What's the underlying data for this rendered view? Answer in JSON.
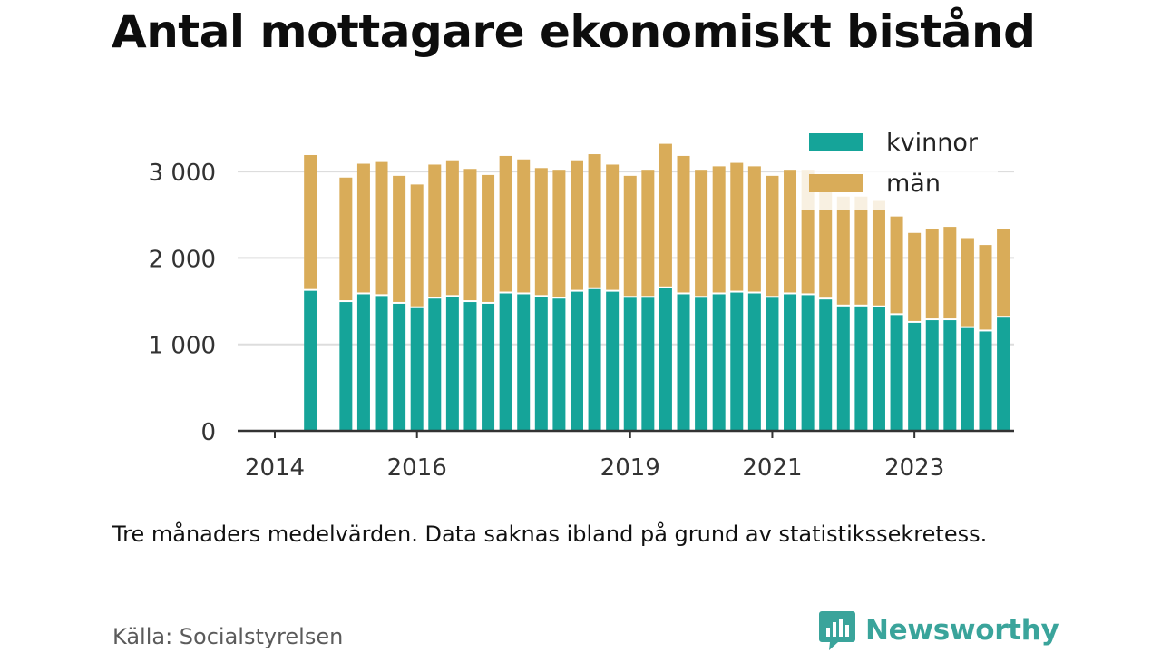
{
  "title": "Antal mottagare ekonomiskt bistånd",
  "caption": "Tre månaders medelvärden. Data saknas ibland på grund av statistikssekretess.",
  "source": "Källa: Socialstyrelsen",
  "brand": {
    "name": "Newsworthy",
    "icon": "bar-chart-speech-bubble-icon",
    "color": "#3aa49b"
  },
  "colors": {
    "kvinnor": "#15a499",
    "man": "#d9ac59",
    "grid": "#dddddd",
    "axis": "#333333"
  },
  "chart_data": {
    "type": "bar",
    "stacked": true,
    "title": "Antal mottagare ekonomiskt bistånd",
    "ylim": [
      0,
      3400
    ],
    "yticks": [
      {
        "value": 0,
        "label": "0"
      },
      {
        "value": 1000,
        "label": "1 000"
      },
      {
        "value": 2000,
        "label": "2 000"
      },
      {
        "value": 3000,
        "label": "3 000"
      }
    ],
    "xticks": [
      {
        "value": "2014-01",
        "label": "2014"
      },
      {
        "value": "2016-01",
        "label": "2016"
      },
      {
        "value": "2019-01",
        "label": "2019"
      },
      {
        "value": "2021-01",
        "label": "2021"
      },
      {
        "value": "2023-01",
        "label": "2023"
      }
    ],
    "grid": true,
    "legend": "top-right",
    "periods": [
      "2014-07",
      "2015-01",
      "2015-04",
      "2015-07",
      "2015-10",
      "2016-01",
      "2016-04",
      "2016-07",
      "2016-10",
      "2017-01",
      "2017-04",
      "2017-07",
      "2017-10",
      "2018-01",
      "2018-04",
      "2018-07",
      "2018-10",
      "2019-01",
      "2019-04",
      "2019-07",
      "2019-10",
      "2020-01",
      "2020-04",
      "2020-07",
      "2020-10",
      "2021-01",
      "2021-04",
      "2021-07",
      "2021-10",
      "2022-01",
      "2022-04",
      "2022-07",
      "2022-10",
      "2023-01",
      "2023-04",
      "2023-07",
      "2023-10",
      "2024-01",
      "2024-04"
    ],
    "series": [
      {
        "name": "kvinnor",
        "color": "#15a499",
        "values": [
          1630,
          1500,
          1590,
          1570,
          1480,
          1430,
          1540,
          1560,
          1500,
          1480,
          1600,
          1590,
          1560,
          1540,
          1620,
          1650,
          1620,
          1550,
          1550,
          1660,
          1590,
          1550,
          1590,
          1610,
          1600,
          1550,
          1590,
          1580,
          1530,
          1450,
          1450,
          1440,
          1350,
          1260,
          1290,
          1290,
          1200,
          1160,
          1320
        ]
      },
      {
        "name": "män",
        "color": "#d9ac59",
        "values": [
          1560,
          1430,
          1500,
          1540,
          1470,
          1420,
          1540,
          1570,
          1530,
          1480,
          1580,
          1550,
          1480,
          1480,
          1510,
          1550,
          1460,
          1400,
          1470,
          1660,
          1590,
          1470,
          1470,
          1490,
          1460,
          1400,
          1430,
          1440,
          1300,
          1260,
          1260,
          1220,
          1130,
          1030,
          1050,
          1070,
          1030,
          990,
          1010
        ]
      }
    ]
  }
}
